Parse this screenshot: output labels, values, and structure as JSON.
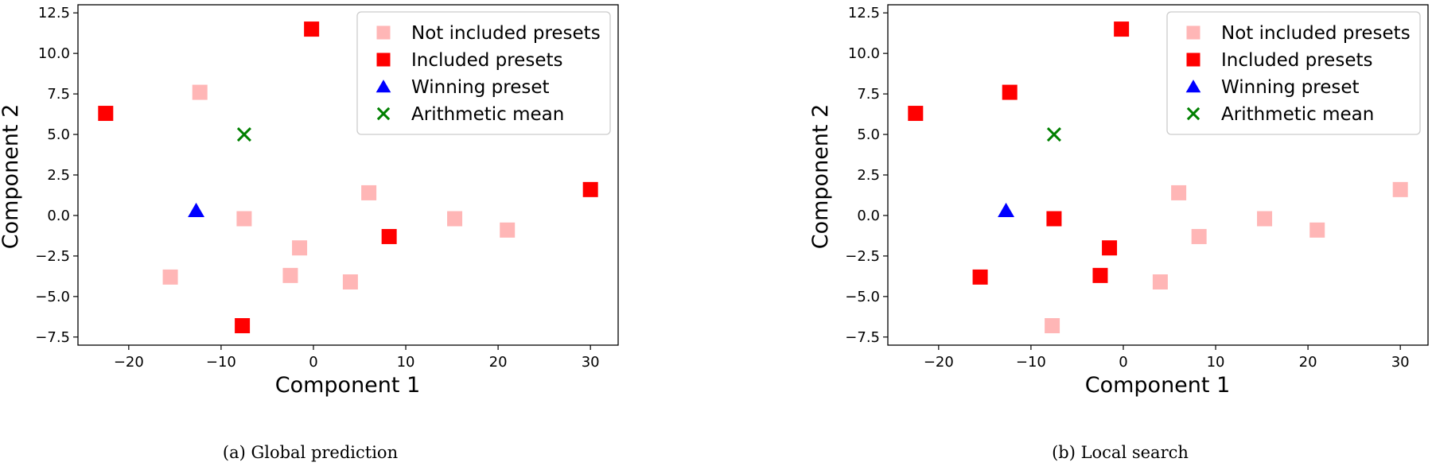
{
  "chart_data": [
    {
      "type": "scatter",
      "caption": "(a) Global prediction",
      "xlabel": "Component 1",
      "ylabel": "Component 2",
      "xlim": [
        -25.5,
        33
      ],
      "ylim": [
        -8.0,
        13.0
      ],
      "xticks": [
        -20,
        -10,
        0,
        10,
        20,
        30
      ],
      "xtick_labels": [
        "−20",
        "−10",
        "0",
        "10",
        "20",
        "30"
      ],
      "yticks": [
        -7.5,
        -5.0,
        -2.5,
        0.0,
        2.5,
        5.0,
        7.5,
        10.0,
        12.5
      ],
      "ytick_labels": [
        "−7.5",
        "−5.0",
        "−2.5",
        "0.0",
        "2.5",
        "5.0",
        "7.5",
        "10.0",
        "12.5"
      ],
      "legend_position": "top-right",
      "grid": false,
      "series": [
        {
          "name": "Not included presets",
          "marker": "square",
          "color": "#ffb6b6",
          "points": [
            [
              -12.3,
              7.6
            ],
            [
              -7.5,
              -0.2
            ],
            [
              -15.5,
              -3.8
            ],
            [
              -2.5,
              -3.7
            ],
            [
              -1.5,
              -2.0
            ],
            [
              4.0,
              -4.1
            ],
            [
              6.0,
              1.4
            ],
            [
              15.3,
              -0.2
            ],
            [
              21.0,
              -0.9
            ]
          ]
        },
        {
          "name": "Included presets",
          "marker": "square",
          "color": "#ff0000",
          "points": [
            [
              -0.2,
              11.5
            ],
            [
              -22.5,
              6.3
            ],
            [
              30.0,
              1.6
            ],
            [
              8.2,
              -1.3
            ],
            [
              -7.7,
              -6.8
            ]
          ]
        },
        {
          "name": "Winning preset",
          "marker": "triangle",
          "color": "#0000ff",
          "points": [
            [
              -12.7,
              0.3
            ]
          ]
        },
        {
          "name": "Arithmetic mean",
          "marker": "x",
          "color": "#008000",
          "points": [
            [
              -7.5,
              5.0
            ]
          ]
        }
      ]
    },
    {
      "type": "scatter",
      "caption": "(b) Local search",
      "xlabel": "Component 1",
      "ylabel": "Component 2",
      "xlim": [
        -25.5,
        33
      ],
      "ylim": [
        -8.0,
        13.0
      ],
      "xticks": [
        -20,
        -10,
        0,
        10,
        20,
        30
      ],
      "xtick_labels": [
        "−20",
        "−10",
        "0",
        "10",
        "20",
        "30"
      ],
      "yticks": [
        -7.5,
        -5.0,
        -2.5,
        0.0,
        2.5,
        5.0,
        7.5,
        10.0,
        12.5
      ],
      "ytick_labels": [
        "−7.5",
        "−5.0",
        "−2.5",
        "0.0",
        "2.5",
        "5.0",
        "7.5",
        "10.0",
        "12.5"
      ],
      "legend_position": "top-right",
      "grid": false,
      "series": [
        {
          "name": "Not included presets",
          "marker": "square",
          "color": "#ffb6b6",
          "points": [
            [
              6.0,
              1.4
            ],
            [
              8.2,
              -1.3
            ],
            [
              15.3,
              -0.2
            ],
            [
              21.0,
              -0.9
            ],
            [
              30.0,
              1.6
            ],
            [
              4.0,
              -4.1
            ],
            [
              -7.7,
              -6.8
            ]
          ]
        },
        {
          "name": "Included presets",
          "marker": "square",
          "color": "#ff0000",
          "points": [
            [
              -0.2,
              11.5
            ],
            [
              -12.3,
              7.6
            ],
            [
              -22.5,
              6.3
            ],
            [
              -7.5,
              -0.2
            ],
            [
              -1.5,
              -2.0
            ],
            [
              -2.5,
              -3.7
            ],
            [
              -15.5,
              -3.8
            ]
          ]
        },
        {
          "name": "Winning preset",
          "marker": "triangle",
          "color": "#0000ff",
          "points": [
            [
              -12.7,
              0.3
            ]
          ]
        },
        {
          "name": "Arithmetic mean",
          "marker": "x",
          "color": "#008000",
          "points": [
            [
              -7.5,
              5.0
            ]
          ]
        }
      ]
    }
  ]
}
